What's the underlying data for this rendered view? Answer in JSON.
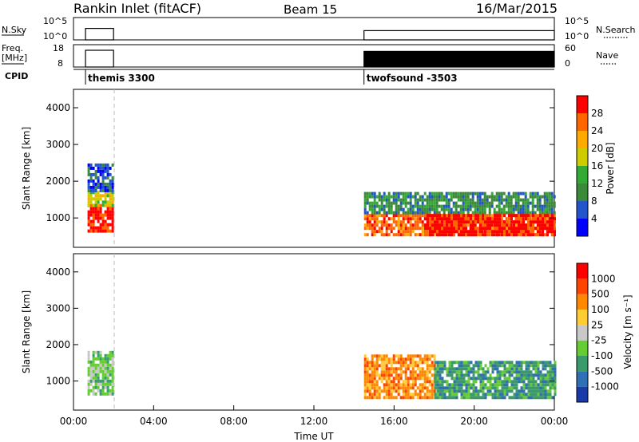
{
  "header": {
    "title": "Rankin Inlet (fitACF)",
    "beam": "Beam 15",
    "date": "16/Mar/2015"
  },
  "chart_data": [
    {
      "type": "line",
      "panel": "sky-search",
      "left_label": "N.Sky",
      "right_label": "N.Search",
      "left_ticks": [
        "10^5",
        "10^0"
      ],
      "right_ticks": [
        "10^5",
        "10^0"
      ],
      "segments": [
        {
          "start_hour": 0.6,
          "end_hour": 2.0,
          "level": 0.3
        },
        {
          "start_hour": 14.5,
          "end_hour": 24.0,
          "level": 0.2
        }
      ]
    },
    {
      "type": "line",
      "panel": "freq-nave",
      "left_label": "Freq.",
      "left_unit": "[MHz]",
      "right_label": "Nave",
      "left_ticks": [
        "18",
        "8"
      ],
      "right_ticks": [
        "60",
        "0"
      ],
      "segments": [
        {
          "start_hour": 0.6,
          "end_hour": 2.0,
          "freq_level": 0.75,
          "nave_level": 0.0
        },
        {
          "start_hour": 14.5,
          "end_hour": 24.0,
          "freq_level": 0.7,
          "nave_level": 0.0
        }
      ]
    },
    {
      "type": "table",
      "panel": "cpid",
      "label": "CPID",
      "programs": [
        {
          "name": "themis 3300",
          "start_hour": 0.6
        },
        {
          "name": "twofsound -3503",
          "start_hour": 14.5
        }
      ]
    },
    {
      "type": "heatmap",
      "panel": "power",
      "ylabel": "Slant Range [km]",
      "ylim": [
        200,
        4500
      ],
      "yticks": [
        1000,
        2000,
        3000,
        4000
      ],
      "colorbar_label": "Power [dB]",
      "colorbar_ticks": [
        "4",
        "8",
        "12",
        "16",
        "20",
        "24",
        "28"
      ],
      "colors": [
        "#0000ff",
        "#2255cc",
        "#3a8a3a",
        "#33aa33",
        "#cccc00",
        "#ffaa00",
        "#ff6600",
        "#ff0000"
      ],
      "regions": [
        {
          "t0": 0.7,
          "t1": 2.0,
          "r0": 600,
          "r1": 1300,
          "level": 7
        },
        {
          "t0": 0.7,
          "t1": 2.0,
          "r0": 1300,
          "r1": 1700,
          "level": 4
        },
        {
          "t0": 0.7,
          "t1": 2.0,
          "r0": 1700,
          "r1": 2400,
          "level": 1
        },
        {
          "t0": 14.5,
          "t1": 24.0,
          "r0": 500,
          "r1": 1100,
          "level": 6
        },
        {
          "t0": 14.5,
          "t1": 24.0,
          "r0": 1100,
          "r1": 1700,
          "level": 2
        },
        {
          "t0": 17.5,
          "t1": 24.0,
          "r0": 500,
          "r1": 1100,
          "level": 7
        }
      ]
    },
    {
      "type": "heatmap",
      "panel": "velocity",
      "ylabel": "Slant Range [km]",
      "ylim": [
        200,
        4500
      ],
      "yticks": [
        1000,
        2000,
        3000,
        4000
      ],
      "xlabel": "Time UT",
      "xticks": [
        "00:00",
        "04:00",
        "08:00",
        "12:00",
        "16:00",
        "20:00",
        "00:00"
      ],
      "xlim_hours": [
        0,
        24
      ],
      "colorbar_label": "Velocity [m s⁻¹]",
      "colorbar_ticks": [
        "1000",
        "500",
        "100",
        "25",
        "-25",
        "-100",
        "-500",
        "-1000"
      ],
      "colors": [
        "#1a3aa8",
        "#2e6fb5",
        "#3a9a6a",
        "#66cc33",
        "#c8c8c8",
        "#ffcc33",
        "#ff8800",
        "#ff4400",
        "#ff0000"
      ],
      "regions": [
        {
          "t0": 0.7,
          "t1": 2.0,
          "r0": 600,
          "r1": 1800,
          "level": 3
        },
        {
          "t0": 14.5,
          "t1": 18.0,
          "r0": 500,
          "r1": 1700,
          "level": 6
        },
        {
          "t0": 18.0,
          "t1": 24.0,
          "r0": 500,
          "r1": 1500,
          "level": 2
        }
      ]
    }
  ]
}
